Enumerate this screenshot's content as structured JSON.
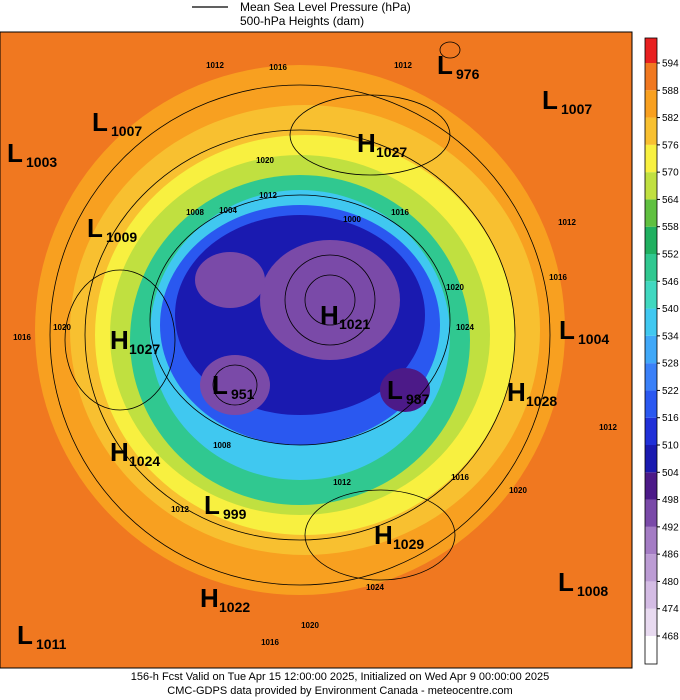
{
  "header": {
    "legend_line": "Mean Sea Level Pressure (hPa)",
    "legend_fill": "500-hPa Heights (dam)"
  },
  "centers": [
    {
      "type": "L",
      "value": "976"
    },
    {
      "type": "L",
      "value": "1007"
    },
    {
      "type": "L",
      "value": "1007"
    },
    {
      "type": "L",
      "value": "1003"
    },
    {
      "type": "H",
      "value": "1027"
    },
    {
      "type": "L",
      "value": "1009"
    },
    {
      "type": "H",
      "value": "1021"
    },
    {
      "type": "H",
      "value": "1027"
    },
    {
      "type": "L",
      "value": "1004"
    },
    {
      "type": "L",
      "value": "951"
    },
    {
      "type": "L",
      "value": "987"
    },
    {
      "type": "H",
      "value": "1028"
    },
    {
      "type": "H",
      "value": "1024"
    },
    {
      "type": "L",
      "value": "999"
    },
    {
      "type": "H",
      "value": "1029"
    },
    {
      "type": "L",
      "value": "1008"
    },
    {
      "type": "H",
      "value": "1022"
    },
    {
      "type": "L",
      "value": "1011"
    }
  ],
  "contour_labels": [
    "1012",
    "1016",
    "1012",
    "1020",
    "1012",
    "1004",
    "1008",
    "1016",
    "1012",
    "1016",
    "1020",
    "1016",
    "1020",
    "1024",
    "1012",
    "1020",
    "1016",
    "1012",
    "1012",
    "1024",
    "1020",
    "1016",
    "1000",
    "1008"
  ],
  "colorbar": {
    "ticks": [
      468,
      474,
      480,
      486,
      492,
      498,
      504,
      510,
      516,
      522,
      528,
      534,
      540,
      546,
      552,
      558,
      564,
      570,
      576,
      582,
      588,
      594
    ],
    "colors": [
      "#ffffff",
      "#e8daf0",
      "#d4bce4",
      "#bc9cd4",
      "#a47cc4",
      "#7a4aa8",
      "#4c1a88",
      "#1a1ab0",
      "#2030d8",
      "#2a58f0",
      "#3a80f8",
      "#40a8f8",
      "#40c8f0",
      "#40d8c0",
      "#30c890",
      "#20b060",
      "#60c040",
      "#c0e040",
      "#f8f040",
      "#f8c030",
      "#f8a020",
      "#f07820",
      "#e82020"
    ]
  },
  "footer": {
    "line1": "156-h Fcst Valid on Tue Apr 15 12:00:00 2025, Initialized on Wed Apr  9 00:00:00 2025",
    "line2": "CMC-GDPS data provided by Environment Canada - meteocentre.com"
  }
}
